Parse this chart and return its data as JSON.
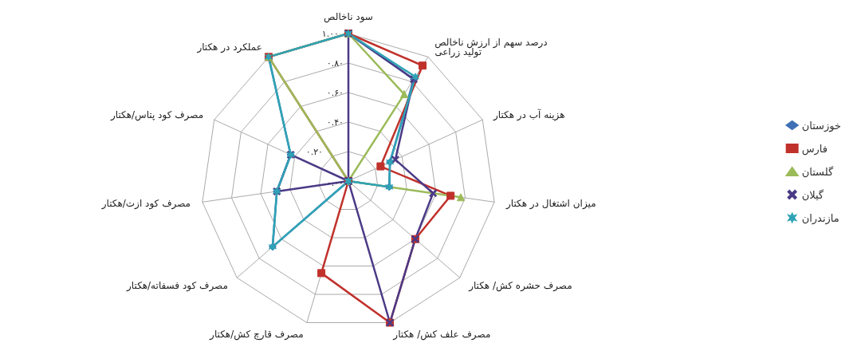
{
  "chart_data": {
    "type": "radar",
    "categories": [
      "سود ناخالص",
      "درصد سهم از ارزش ناخالص\nتولید زراعی",
      "هزینه آب در هکتار",
      "میزان اشتغال در هکتار",
      "مصرف حشره کش/ هکتار",
      "مصرف علف کش/ هکتار",
      "مصرف قارچ کش/هکتار",
      "مصرف کود فسفاته/هکتار",
      "مصرف کود ازت/هکتار",
      "مصرف کود پتاس/هکتار",
      "عملکرد در هکتار"
    ],
    "series": [
      {
        "name": "خوزستان",
        "color": "#3f6fb5",
        "marker": "diamond",
        "values": [
          1.0,
          0.82,
          0.31,
          0.28,
          0,
          0,
          0,
          0.68,
          0.49,
          0.43,
          1.0
        ]
      },
      {
        "name": "فارس",
        "color": "#c0312b",
        "marker": "square",
        "values": [
          1.0,
          0.93,
          0.24,
          0.7,
          0.6,
          1.0,
          0.65,
          0,
          0,
          0,
          1.0
        ]
      },
      {
        "name": "گلستان",
        "color": "#9bbb59",
        "marker": "triangle",
        "values": [
          1.0,
          0.7,
          0,
          0.77,
          0,
          0,
          0,
          0,
          0,
          0,
          1.0
        ]
      },
      {
        "name": "گیلان",
        "color": "#4b3a86",
        "marker": "cross",
        "values": [
          1.0,
          0.82,
          0.35,
          0.58,
          0.6,
          1.0,
          0,
          0,
          0.49,
          0.43,
          0
        ]
      },
      {
        "name": "مازندران",
        "color": "#2fa3b5",
        "marker": "star",
        "values": [
          1.0,
          0.84,
          0.31,
          0.28,
          0,
          0,
          0,
          0.68,
          0.49,
          0.43,
          1.0
        ]
      }
    ],
    "ylim": [
      0,
      1
    ],
    "yticks": [
      {
        "value": 0,
        "label": "۰.۰۰"
      },
      {
        "value": 0.2,
        "label": "۰.۲۰"
      },
      {
        "value": 0.4,
        "label": "۰.۴۰"
      },
      {
        "value": 0.6,
        "label": "۰.۶۰"
      },
      {
        "value": 0.8,
        "label": "۰.۸۰"
      },
      {
        "value": 1,
        "label": "۱.۰۰"
      }
    ],
    "legend": "right"
  }
}
